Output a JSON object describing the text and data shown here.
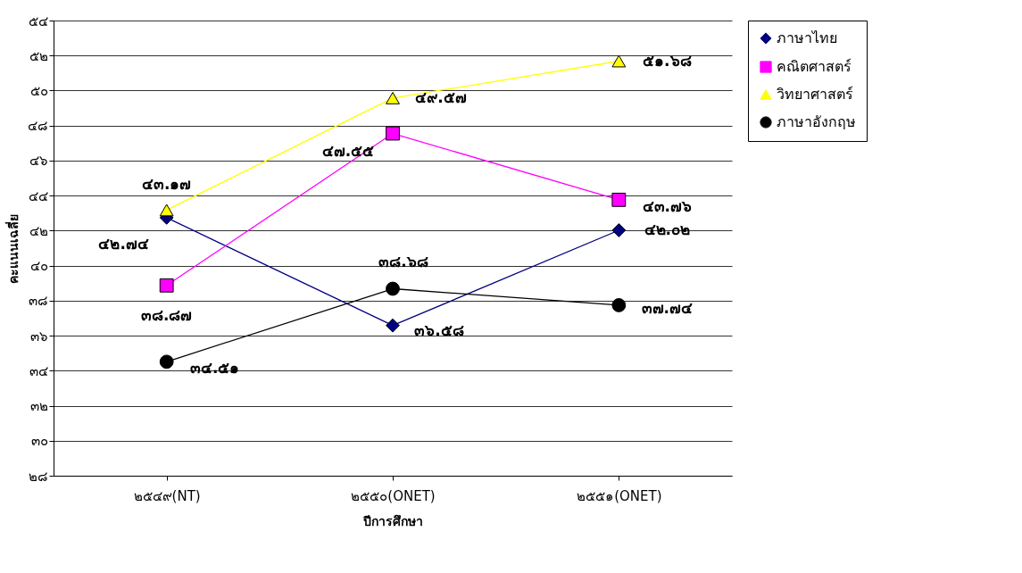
{
  "chart_data": {
    "type": "line",
    "xlabel": "ปีการศึกษา",
    "ylabel": "คะแนนเฉลี่ย",
    "categories": [
      "๒๕๔๙(NT)",
      "๒๕๕๐(ONET)",
      "๒๕๕๑(ONET)"
    ],
    "series": [
      {
        "name": "ภาษาไทย",
        "color": "#000080",
        "marker": "diamond",
        "values": [
          42.74,
          36.58,
          42.02
        ],
        "value_labels": [
          "๔๒.๗๔",
          "๓๖.๕๘",
          "๔๒.๐๒"
        ]
      },
      {
        "name": "คณิตศาสตร์",
        "color": "#ff00ff",
        "marker": "square",
        "values": [
          38.87,
          47.55,
          43.76
        ],
        "value_labels": [
          "๓๘.๘๗",
          "๔๗.๕๕",
          "๔๓.๗๖"
        ]
      },
      {
        "name": "วิทยาศาสตร์",
        "color": "#ffff00",
        "marker": "triangle",
        "values": [
          43.17,
          49.57,
          51.68
        ],
        "value_labels": [
          "๔๓.๑๗",
          "๔๙.๕๗",
          "๕๑.๖๘"
        ]
      },
      {
        "name": "ภาษาอังกฤษ",
        "color": "#000000",
        "marker": "circle",
        "values": [
          34.51,
          38.68,
          37.74
        ],
        "value_labels": [
          "๓๔.๕๑",
          "๓๘.๖๘",
          "๓๗.๗๔"
        ]
      }
    ],
    "ylim": [
      28,
      54
    ],
    "yticks": [
      {
        "value": 28,
        "label": "๒๘"
      },
      {
        "value": 30,
        "label": "๓๐"
      },
      {
        "value": 32,
        "label": "๓๒"
      },
      {
        "value": 34,
        "label": "๓๔"
      },
      {
        "value": 36,
        "label": "๓๖"
      },
      {
        "value": 38,
        "label": "๓๘"
      },
      {
        "value": 40,
        "label": "๔๐"
      },
      {
        "value": 42,
        "label": "๔๒"
      },
      {
        "value": 44,
        "label": "๔๔"
      },
      {
        "value": 46,
        "label": "๔๖"
      },
      {
        "value": 48,
        "label": "๔๘"
      },
      {
        "value": 50,
        "label": "๕๐"
      },
      {
        "value": 52,
        "label": "๕๒"
      },
      {
        "value": 54,
        "label": "๕๔"
      }
    ],
    "grid": "y",
    "legend": "right"
  }
}
